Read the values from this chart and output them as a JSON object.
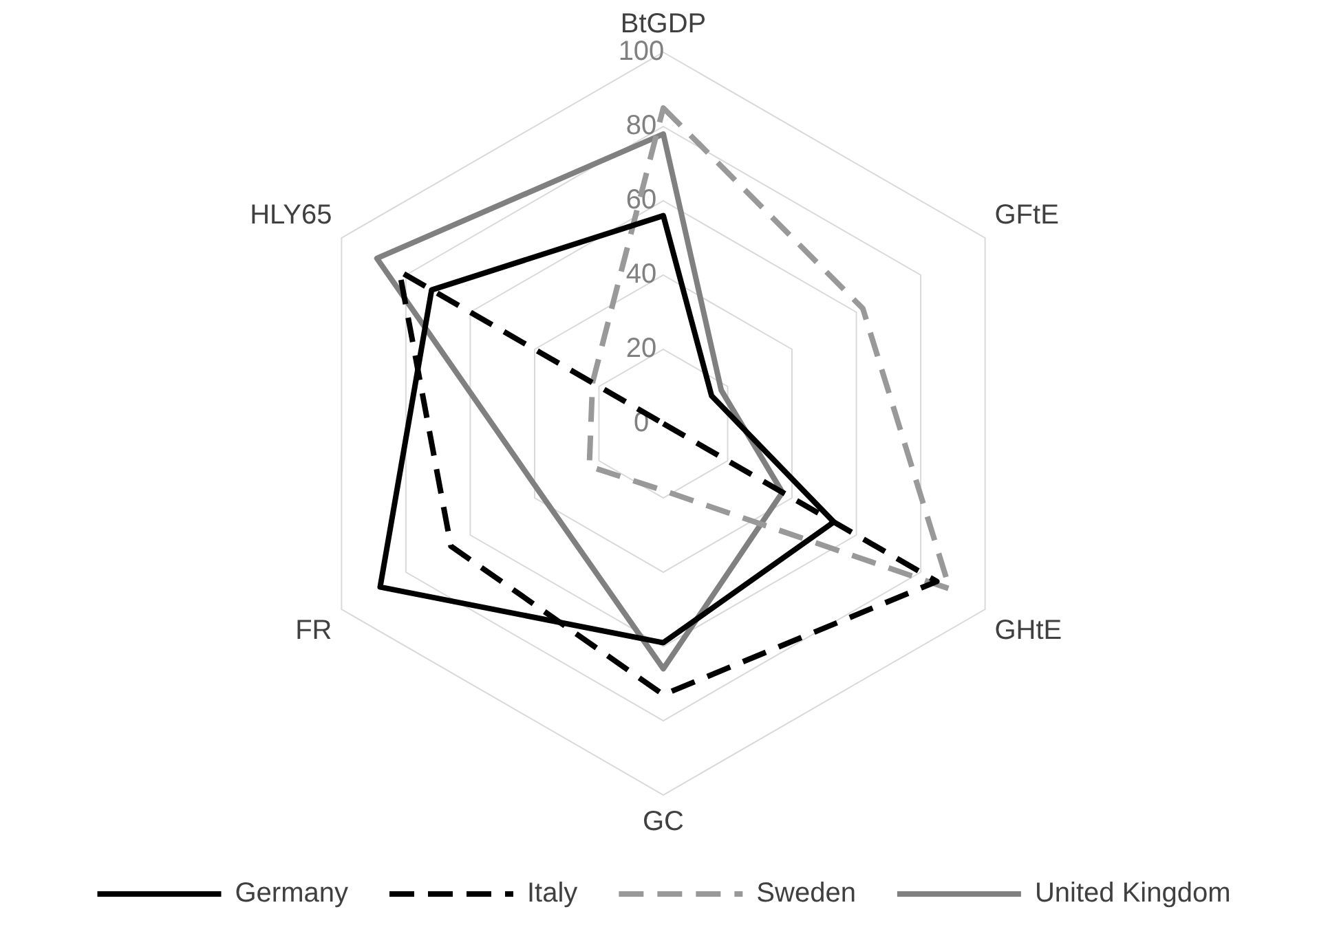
{
  "chart_data": {
    "type": "radar",
    "categories": [
      "BtGDP",
      "GFtE",
      "GHtE",
      "GC",
      "FR",
      "HLY65"
    ],
    "series": [
      {
        "name": "Germany",
        "color": "#000000",
        "line_style": "solid",
        "values": [
          56,
          15,
          53,
          59,
          88,
          72
        ]
      },
      {
        "name": "Italy",
        "color": "#000000",
        "line_style": "dashed",
        "values": [
          0,
          0,
          85,
          73,
          66,
          82
        ]
      },
      {
        "name": "Sweden",
        "color": "#999999",
        "line_style": "dashed",
        "values": [
          85,
          62,
          89,
          18,
          23,
          22
        ]
      },
      {
        "name": "United Kingdom",
        "color": "#808080",
        "line_style": "solid",
        "values": [
          78,
          18,
          37,
          66,
          38,
          89
        ]
      }
    ],
    "ylim": [
      0,
      100
    ],
    "yticks": [
      0,
      20,
      40,
      60,
      80,
      100
    ],
    "grid": true,
    "legend": "bottom",
    "marker": "none"
  }
}
